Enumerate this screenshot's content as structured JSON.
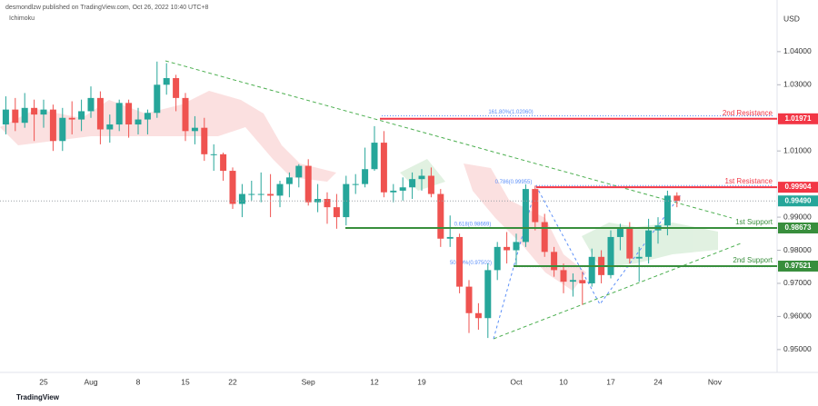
{
  "chart_data": {
    "type": "candlestick",
    "header": "desmondlzw published on TradingView.com, Oct 26, 2022 10:40 UTC+8",
    "indicator": "Ichimoku",
    "currency": "USD",
    "footer": "TradingView",
    "up_color": "#26a69a",
    "down_color": "#ef5350",
    "categories": [
      null,
      null,
      null,
      null,
      "25",
      null,
      null,
      null,
      null,
      "Aug",
      null,
      null,
      null,
      null,
      "8",
      null,
      null,
      null,
      null,
      "15",
      null,
      null,
      null,
      null,
      "22",
      null,
      null,
      null,
      null,
      null,
      null,
      null,
      "Sep",
      null,
      null,
      null,
      null,
      null,
      null,
      "12",
      null,
      null,
      null,
      null,
      "19",
      null,
      null,
      null,
      null,
      null,
      null,
      null,
      null,
      null,
      "Oct",
      null,
      null,
      null,
      null,
      "10",
      null,
      null,
      null,
      null,
      "17",
      null,
      null,
      null,
      null,
      "24",
      null,
      null,
      null,
      null,
      null,
      "Nov",
      null,
      null,
      null,
      null,
      null,
      null
    ],
    "open": [
      1.018,
      1.0225,
      1.0185,
      1.023,
      1.021,
      1.0225,
      1.013,
      1.02,
      1.0195,
      1.022,
      1.026,
      1.0165,
      1.018,
      1.0245,
      1.018,
      1.0195,
      1.0215,
      1.03,
      1.032,
      1.026,
      1.016,
      1.017,
      1.009,
      1.009,
      1.004,
      0.994,
      0.997,
      0.997,
      0.997,
      0.9965,
      1.0,
      1.002,
      1.0055,
      0.9945,
      0.9955,
      0.993,
      0.99,
      1.0,
      1.0,
      1.0045,
      1.0125,
      0.9975,
      0.998,
      0.999,
      1.0015,
      1.0025,
      0.997,
      0.9835,
      0.984,
      0.969,
      0.961,
      0.9595,
      0.974,
      0.981,
      0.98,
      0.9825,
      0.9985,
      0.9885,
      0.9795,
      0.974,
      0.9705,
      0.971,
      0.97,
      0.978,
      0.9725,
      0.984,
      0.987,
      0.9775,
      0.978,
      0.986,
      0.9875,
      0.9965,
      null,
      null,
      null,
      null,
      null,
      null,
      null,
      null,
      null,
      null
    ],
    "high": [
      1.0265,
      1.026,
      1.0275,
      1.0255,
      1.0255,
      1.024,
      1.023,
      1.025,
      1.0255,
      1.0295,
      1.028,
      1.021,
      1.0255,
      1.0255,
      1.023,
      1.0225,
      1.037,
      1.0365,
      1.033,
      1.0275,
      1.0205,
      1.02,
      1.012,
      1.0095,
      1.005,
      1.0,
      1.001,
      1.0035,
      1.003,
      1.001,
      1.0035,
      1.006,
      1.0075,
      1.0,
      0.9975,
      0.997,
      1.0025,
      1.003,
      1.011,
      1.0175,
      1.016,
      1.0,
      1.002,
      1.0035,
      1.0045,
      1.005,
      0.9985,
      0.9905,
      0.985,
      0.971,
      0.964,
      0.976,
      0.9825,
      0.9855,
      0.985,
      0.9999,
      0.9995,
      0.991,
      0.981,
      0.976,
      0.973,
      0.9735,
      0.9805,
      0.98,
      0.986,
      0.988,
      0.9885,
      0.981,
      0.9895,
      0.99,
      0.998,
      0.9975,
      null,
      null,
      null,
      null,
      null,
      null,
      null,
      null,
      null,
      null
    ],
    "low": [
      1.015,
      1.016,
      1.017,
      1.013,
      1.017,
      1.01,
      1.01,
      1.015,
      1.016,
      1.02,
      1.012,
      1.0125,
      1.016,
      1.014,
      1.015,
      1.015,
      1.02,
      1.027,
      1.022,
      1.013,
      1.012,
      1.007,
      1.004,
      1.001,
      0.9925,
      0.99,
      0.995,
      0.9945,
      0.99,
      0.993,
      0.996,
      0.999,
      0.9935,
      0.9915,
      0.988,
      0.9865,
      0.9875,
      0.997,
      0.999,
      1.004,
      0.996,
      0.9945,
      0.995,
      0.9955,
      0.998,
      0.996,
      0.981,
      0.981,
      0.967,
      0.955,
      0.956,
      0.9535,
      0.971,
      0.976,
      0.9755,
      0.981,
      0.986,
      0.978,
      0.972,
      0.967,
      0.966,
      0.9635,
      0.969,
      0.97,
      0.9715,
      0.98,
      0.976,
      0.9705,
      0.976,
      0.982,
      0.9845,
      0.993,
      null,
      null,
      null,
      null,
      null,
      null,
      null,
      null,
      null,
      null
    ],
    "close": [
      1.0225,
      1.0185,
      1.023,
      1.021,
      1.0225,
      1.013,
      1.02,
      1.0195,
      1.022,
      1.026,
      1.0165,
      1.018,
      1.0245,
      1.018,
      1.0195,
      1.0215,
      1.03,
      1.032,
      1.026,
      1.016,
      1.017,
      1.009,
      1.009,
      1.004,
      0.994,
      0.997,
      0.997,
      0.997,
      0.9965,
      1.0,
      1.002,
      1.0055,
      0.9945,
      0.9955,
      0.993,
      0.99,
      1.0,
      1.0,
      1.0045,
      1.0125,
      0.9975,
      0.998,
      0.999,
      1.0015,
      1.0025,
      0.997,
      0.9835,
      0.984,
      0.969,
      0.961,
      0.9595,
      0.974,
      0.981,
      0.98,
      0.9825,
      0.9985,
      0.9885,
      0.9795,
      0.974,
      0.9705,
      0.971,
      0.97,
      0.978,
      0.9725,
      0.984,
      0.987,
      0.9775,
      0.978,
      0.986,
      0.9875,
      0.9965,
      0.9949,
      null,
      null,
      null,
      null,
      null,
      null,
      null,
      null,
      null,
      null
    ],
    "ylim": [
      0.9431,
      1.0556
    ],
    "yticks": [
      {
        "value": 1.04,
        "label": "1.04000"
      },
      {
        "value": 1.03,
        "label": "1.03000"
      },
      {
        "value": 1.01,
        "label": "1.01000"
      },
      {
        "value": 0.99,
        "label": "0.99000"
      },
      {
        "value": 0.98,
        "label": "0.98000"
      },
      {
        "value": 0.97,
        "label": "0.97000"
      },
      {
        "value": 0.96,
        "label": "0.96000"
      },
      {
        "value": 0.95,
        "label": "0.95000"
      }
    ],
    "levels": [
      {
        "name": "2nd Resistance",
        "value": 1.01971,
        "color": "#f23645"
      },
      {
        "name": "1st Resistance",
        "value": 0.99904,
        "color": "#f23645"
      },
      {
        "name": "1st Support",
        "value": 0.98673,
        "color": "#388e3c"
      },
      {
        "name": "2nd Support",
        "value": 0.97521,
        "color": "#388e3c"
      }
    ],
    "last_price": {
      "value": 0.9949,
      "label": "0.99490",
      "color": "#26a69a"
    },
    "fibs": [
      {
        "label": "161.80%(1.02060)",
        "value": 1.0206
      },
      {
        "label": "0.786(0.99955)",
        "value": 0.99955
      },
      {
        "label": "0.618(0.98669)",
        "value": 0.98669
      },
      {
        "label": "50.00%(0.97502)",
        "value": 0.97502
      }
    ]
  }
}
